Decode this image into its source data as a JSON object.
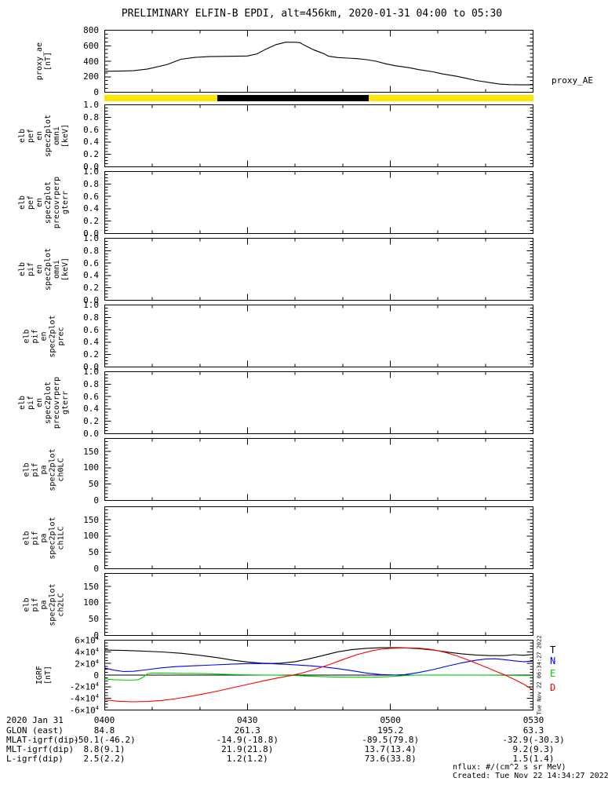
{
  "title": "PRELIMINARY ELFIN-B EPDI, alt=456km, 2020-01-31 04:00 to 05:30",
  "right_labels": {
    "proxy": "proxy_AE"
  },
  "side_timestamp": "Tue Nov 22 06:34:27 2022",
  "colors": {
    "axis": "#000000",
    "bar_yellow": "#ffe600",
    "bar_black": "#000000",
    "igrf_T": "#000000",
    "igrf_N": "#0000ff",
    "igrf_E": "#00d000",
    "igrf_D": "#ff0000"
  },
  "legend": {
    "entries": [
      {
        "label": "T",
        "color": "#000000"
      },
      {
        "label": "N",
        "color": "#0000ff"
      },
      {
        "label": "E",
        "color": "#00d000"
      },
      {
        "label": "D",
        "color": "#ff0000"
      }
    ]
  },
  "panels": [
    {
      "id": "proxy_ae",
      "ylabel_lines": [
        "proxy_ae",
        "[nT]"
      ],
      "ytick_labels": [
        "800",
        "600",
        "400",
        "200",
        "0"
      ]
    },
    {
      "id": "elb_pef_en_spec2plot_omni",
      "ylabel_lines": [
        "elb",
        "pef",
        "en",
        "spec2plot",
        "omni",
        "[keV]"
      ],
      "ytick_labels": [
        "1.0",
        "0.8",
        "0.6",
        "0.4",
        "0.2",
        "0.0"
      ]
    },
    {
      "id": "elb_pef_en_spec2plot_precovrperp_gterr",
      "ylabel_lines": [
        "elb",
        "pef",
        "en",
        "spec2plot",
        "precovrperp",
        "gterr"
      ],
      "ytick_labels": [
        "1.0",
        "0.8",
        "0.6",
        "0.4",
        "0.2",
        "0.0"
      ]
    },
    {
      "id": "elb_pif_en_spec2plot_omni",
      "ylabel_lines": [
        "elb",
        "pif",
        "en",
        "spec2plot",
        "omni",
        "[keV]"
      ],
      "ytick_labels": [
        "1.0",
        "0.8",
        "0.6",
        "0.4",
        "0.2",
        "0.0"
      ]
    },
    {
      "id": "elb_pif_en_spec2plot_prec",
      "ylabel_lines": [
        "elb",
        "pif",
        "en",
        "spec2plot",
        "prec"
      ],
      "ytick_labels": [
        "1.0",
        "0.8",
        "0.6",
        "0.4",
        "0.2",
        "0.0"
      ]
    },
    {
      "id": "elb_pif_en_spec2plot_precovrperp_gterr",
      "ylabel_lines": [
        "elb",
        "pif",
        "en",
        "spec2plot",
        "precovrperp",
        "gterr"
      ],
      "ytick_labels": [
        "1.0",
        "0.8",
        "0.6",
        "0.4",
        "0.2",
        "0.0"
      ]
    },
    {
      "id": "elb_pif_pa_spec2plot_ch0LC",
      "ylabel_lines": [
        "elb",
        "pif",
        "pa",
        "spec2plot",
        "ch0LC"
      ],
      "ytick_labels": [
        "150",
        "100",
        "50",
        "0"
      ]
    },
    {
      "id": "elb_pif_pa_spec2plot_ch1LC",
      "ylabel_lines": [
        "elb",
        "pif",
        "pa",
        "spec2plot",
        "ch1LC"
      ],
      "ytick_labels": [
        "150",
        "100",
        "50",
        "0"
      ]
    },
    {
      "id": "elb_pif_pa_spec2plot_ch2LC",
      "ylabel_lines": [
        "elb",
        "pif",
        "pa",
        "spec2plot",
        "ch2LC"
      ],
      "ytick_labels": [
        "150",
        "100",
        "50",
        "0"
      ]
    },
    {
      "id": "igrf",
      "ylabel_lines": [
        "IGRF",
        "[nT]"
      ],
      "ytick_labels": [
        "6×10^4",
        "4×10^4",
        "2×10^4",
        "0",
        "-2×10^4",
        "-4×10^4",
        "-6×10^4"
      ]
    }
  ],
  "xaxis": {
    "tick_labels": [
      "0400",
      "0430",
      "0500",
      "0530"
    ]
  },
  "footer_left": {
    "date_label": "2020 Jan 31"
  },
  "table": {
    "row_labels": [
      "GLON (east)",
      "MLAT-igrf(dip)",
      "MLT-igrf(dip)",
      "L-igrf(dip)"
    ],
    "columns": [
      "0400",
      "0430",
      "0500",
      "0530"
    ],
    "rows": [
      [
        "84.8",
        "261.3",
        "195.2",
        "63.3"
      ],
      [
        "-50.1(-46.2)",
        "-14.9(-18.8)",
        "-89.5(79.8)",
        "-32.9(-30.3)"
      ],
      [
        "8.8(9.1)",
        "21.9(21.8)",
        "13.7(13.4)",
        "9.2(9.3)"
      ],
      [
        "2.5(2.2)",
        "1.2(1.2)",
        "73.6(33.8)",
        "1.5(1.4)"
      ]
    ]
  },
  "footer_right": {
    "line1": "nflux: #/(cm^2 s sr MeV)",
    "line2": "Created: Tue Nov 22 14:34:27 2022"
  },
  "chart_data": [
    {
      "id": "proxy_ae",
      "type": "line",
      "title": "proxy_AE",
      "ylabel": "proxy_ae [nT]",
      "ylim": [
        0,
        800
      ],
      "yticks": [
        0,
        200,
        400,
        600,
        800
      ],
      "xlim_minutes": [
        0,
        90
      ],
      "x_tick_labels": [
        "0400",
        "0430",
        "0500",
        "0530"
      ],
      "grid": false,
      "series": [
        {
          "name": "proxy_AE",
          "color": "#000000",
          "points_min_nT": [
            [
              0,
              270
            ],
            [
              3,
              272
            ],
            [
              6,
              277
            ],
            [
              9,
              300
            ],
            [
              13,
              355
            ],
            [
              16,
              425
            ],
            [
              19,
              450
            ],
            [
              22,
              460
            ],
            [
              25,
              463
            ],
            [
              28,
              465
            ],
            [
              30,
              468
            ],
            [
              32,
              495
            ],
            [
              34,
              560
            ],
            [
              36,
              615
            ],
            [
              38,
              645
            ],
            [
              40,
              645
            ],
            [
              41,
              640
            ],
            [
              42,
              605
            ],
            [
              44,
              545
            ],
            [
              46,
              498
            ],
            [
              47,
              465
            ],
            [
              49,
              448
            ],
            [
              51,
              441
            ],
            [
              53,
              433
            ],
            [
              55,
              420
            ],
            [
              57,
              400
            ],
            [
              59,
              368
            ],
            [
              61,
              342
            ],
            [
              64,
              316
            ],
            [
              66,
              292
            ],
            [
              69,
              263
            ],
            [
              71,
              236
            ],
            [
              74,
              206
            ],
            [
              76,
              179
            ],
            [
              78,
              152
            ],
            [
              81,
              124
            ],
            [
              83,
              105
            ],
            [
              85,
              98
            ],
            [
              88,
              95
            ],
            [
              90,
              97
            ]
          ]
        }
      ]
    },
    {
      "id": "science_zone_bar",
      "type": "bar",
      "title": "status bar (yellow/black)",
      "segments": [
        {
          "color": "#ffe600",
          "start_min": 0,
          "end_min": 23.7
        },
        {
          "color": "#000000",
          "start_min": 23.7,
          "end_min": 55.4
        },
        {
          "color": "#ffe600",
          "start_min": 55.4,
          "end_min": 90
        }
      ]
    },
    {
      "id": "elb_pef_en_spec2plot_omni",
      "type": "line",
      "ylabel": "elb pef en spec2plot omni [keV]",
      "ylim": [
        0,
        1.0
      ],
      "series": []
    },
    {
      "id": "elb_pef_en_spec2plot_precovrperp_gterr",
      "type": "line",
      "ylabel": "elb pef en spec2plot precovrperp gterr",
      "ylim": [
        0,
        1.0
      ],
      "series": []
    },
    {
      "id": "elb_pif_en_spec2plot_omni",
      "type": "line",
      "ylabel": "elb pif en spec2plot omni [keV]",
      "ylim": [
        0,
        1.0
      ],
      "series": []
    },
    {
      "id": "elb_pif_en_spec2plot_prec",
      "type": "line",
      "ylabel": "elb pif en spec2plot prec",
      "ylim": [
        0,
        1.0
      ],
      "series": []
    },
    {
      "id": "elb_pif_en_spec2plot_precovrperp_gterr",
      "type": "line",
      "ylabel": "elb pif en spec2plot precovrperp gterr",
      "ylim": [
        0,
        1.0
      ],
      "series": []
    },
    {
      "id": "elb_pif_pa_spec2plot_ch0LC",
      "type": "line",
      "ylabel": "elb pif pa spec2plot ch0LC",
      "ylim": [
        0,
        190
      ],
      "yticks": [
        0,
        50,
        100,
        150
      ],
      "series": []
    },
    {
      "id": "elb_pif_pa_spec2plot_ch1LC",
      "type": "line",
      "ylabel": "elb pif pa spec2plot ch1LC",
      "ylim": [
        0,
        190
      ],
      "yticks": [
        0,
        50,
        100,
        150
      ],
      "series": []
    },
    {
      "id": "elb_pif_pa_spec2plot_ch2LC",
      "type": "line",
      "ylabel": "elb pif pa spec2plot ch2LC",
      "ylim": [
        0,
        190
      ],
      "yticks": [
        0,
        50,
        100,
        150
      ],
      "series": []
    },
    {
      "id": "igrf",
      "type": "line",
      "ylabel": "IGRF [nT]",
      "ylim": [
        -60000,
        60000
      ],
      "yticks": [
        -60000,
        -40000,
        -20000,
        0,
        20000,
        40000,
        60000
      ],
      "xlim_minutes": [
        0,
        90
      ],
      "legend": [
        "T",
        "N",
        "E",
        "D"
      ],
      "legend_position": "right",
      "zero_line": true,
      "series": [
        {
          "name": "T",
          "color": "#000000",
          "points_min_nT": [
            [
              0,
              43000
            ],
            [
              4,
              42400
            ],
            [
              8,
              41300
            ],
            [
              12,
              39800
            ],
            [
              16,
              37500
            ],
            [
              20,
              34000
            ],
            [
              24,
              29500
            ],
            [
              27,
              25500
            ],
            [
              30,
              22500
            ],
            [
              33,
              20500
            ],
            [
              35,
              20000
            ],
            [
              37,
              20500
            ],
            [
              40,
              23000
            ],
            [
              43,
              28000
            ],
            [
              46,
              34000
            ],
            [
              49,
              40000
            ],
            [
              52,
              44000
            ],
            [
              55,
              46000
            ],
            [
              58,
              47000
            ],
            [
              62,
              47000
            ],
            [
              66,
              45500
            ],
            [
              69,
              43000
            ],
            [
              72,
              39500
            ],
            [
              75,
              36500
            ],
            [
              78,
              34500
            ],
            [
              81,
              33500
            ],
            [
              84,
              33500
            ],
            [
              86,
              35000
            ],
            [
              88,
              34000
            ],
            [
              90,
              35500
            ]
          ]
        },
        {
          "name": "N",
          "color": "#0000ff",
          "points_min_nT": [
            [
              0,
              12000
            ],
            [
              2,
              8500
            ],
            [
              4,
              6000
            ],
            [
              6,
              6500
            ],
            [
              9,
              9500
            ],
            [
              12,
              12500
            ],
            [
              15,
              14500
            ],
            [
              19,
              16000
            ],
            [
              23,
              17500
            ],
            [
              27,
              19000
            ],
            [
              31,
              20000
            ],
            [
              35,
              19500
            ],
            [
              39,
              18000
            ],
            [
              43,
              16000
            ],
            [
              46,
              14000
            ],
            [
              49,
              11000
            ],
            [
              52,
              7500
            ],
            [
              55,
              3500
            ],
            [
              58,
              1000
            ],
            [
              61,
              200
            ],
            [
              63,
              800
            ],
            [
              66,
              4500
            ],
            [
              69,
              9500
            ],
            [
              72,
              15500
            ],
            [
              75,
              21000
            ],
            [
              78,
              25500
            ],
            [
              80,
              27500
            ],
            [
              82,
              28000
            ],
            [
              84,
              26500
            ],
            [
              86,
              24500
            ],
            [
              88,
              23000
            ],
            [
              90,
              24000
            ]
          ]
        },
        {
          "name": "E",
          "color": "#00d000",
          "points_min_nT": [
            [
              0,
              -6500
            ],
            [
              2,
              -8000
            ],
            [
              5,
              -8800
            ],
            [
              7,
              -8000
            ],
            [
              8,
              -4000
            ],
            [
              9,
              2500
            ],
            [
              10,
              3500
            ],
            [
              13,
              3500
            ],
            [
              16,
              3000
            ],
            [
              19,
              2800
            ],
            [
              22,
              2300
            ],
            [
              25,
              1500
            ],
            [
              28,
              800
            ],
            [
              32,
              300
            ],
            [
              36,
              -200
            ],
            [
              40,
              -800
            ],
            [
              44,
              -2200
            ],
            [
              48,
              -3200
            ],
            [
              52,
              -3600
            ],
            [
              56,
              -3600
            ],
            [
              59,
              -3000
            ],
            [
              61,
              -2200
            ],
            [
              63,
              -800
            ],
            [
              65,
              -200
            ],
            [
              70,
              100
            ],
            [
              75,
              100
            ],
            [
              80,
              -200
            ],
            [
              85,
              -400
            ],
            [
              90,
              -900
            ]
          ]
        },
        {
          "name": "D",
          "color": "#ff0000",
          "points_min_nT": [
            [
              0,
              -42500
            ],
            [
              3,
              -45000
            ],
            [
              6,
              -45800
            ],
            [
              9,
              -45300
            ],
            [
              12,
              -43500
            ],
            [
              15,
              -40500
            ],
            [
              18,
              -36500
            ],
            [
              21,
              -32000
            ],
            [
              24,
              -27000
            ],
            [
              27,
              -21500
            ],
            [
              30,
              -16000
            ],
            [
              33,
              -10500
            ],
            [
              36,
              -5500
            ],
            [
              39,
              -1000
            ],
            [
              41,
              2500
            ],
            [
              44,
              9500
            ],
            [
              47,
              17500
            ],
            [
              50,
              26500
            ],
            [
              53,
              35000
            ],
            [
              56,
              41500
            ],
            [
              58,
              44500
            ],
            [
              60,
              46000
            ],
            [
              63,
              46800
            ],
            [
              66,
              46300
            ],
            [
              68,
              44800
            ],
            [
              70,
              42000
            ],
            [
              72,
              38000
            ],
            [
              74,
              33000
            ],
            [
              76,
              27000
            ],
            [
              78,
              20500
            ],
            [
              80,
              14000
            ],
            [
              82,
              7000
            ],
            [
              84,
              500
            ],
            [
              86,
              -7000
            ],
            [
              88,
              -15500
            ],
            [
              90,
              -25500
            ]
          ]
        }
      ]
    }
  ]
}
